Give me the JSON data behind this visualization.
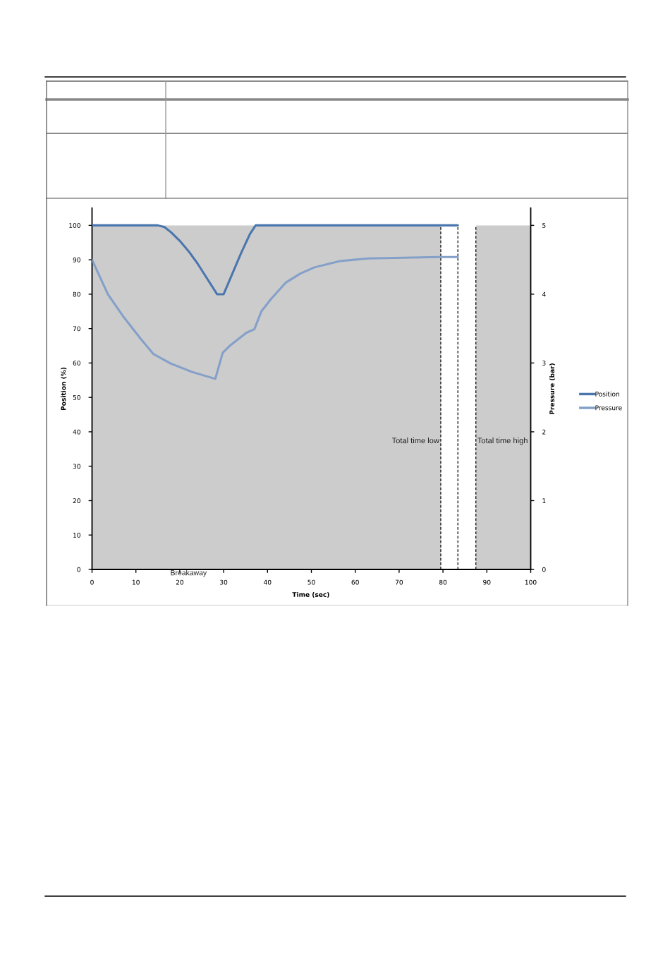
{
  "chart_data": {
    "type": "line",
    "xlabel": "Time (sec)",
    "ylabel": "Position (%)",
    "y2label": "Pressure (bar)",
    "xlim": [
      0,
      100
    ],
    "xticks": [
      0,
      10,
      20,
      30,
      40,
      50,
      60,
      70,
      80,
      90,
      100
    ],
    "ylim": [
      0,
      105
    ],
    "yticks": [
      0,
      10,
      20,
      30,
      40,
      50,
      60,
      70,
      80,
      90,
      100
    ],
    "y2lim": [
      0,
      5.25
    ],
    "y2ticks": [
      0,
      1,
      2,
      3,
      4,
      5
    ],
    "series": [
      {
        "type": "area",
        "color": "#cccccc",
        "x": [
          0,
          79.5
        ],
        "values": [
          100,
          100
        ]
      },
      {
        "type": "area",
        "color": "#cccccc",
        "x": [
          87.5,
          100
        ],
        "values": [
          100,
          100
        ]
      },
      {
        "name": "Position",
        "color": "#4a76ae",
        "x": [
          0,
          15,
          16.5,
          18,
          20,
          22,
          24,
          26,
          28.5,
          30,
          32,
          34,
          36,
          37.3,
          83.4
        ],
        "values": [
          100,
          100,
          99.5,
          98,
          95.5,
          92.5,
          89,
          85,
          80,
          80,
          86,
          92,
          97.5,
          100,
          100
        ]
      },
      {
        "name": "Pressure",
        "color": "#84a0c9",
        "axis": "y2",
        "x": [
          0,
          3.6,
          7.3,
          11.1,
          14,
          18,
          22.8,
          28.1,
          29.8,
          31.4,
          35.2,
          37,
          38.6,
          40.8,
          44.2,
          47.5,
          50.7,
          56.5,
          63,
          71,
          79,
          83.4
        ],
        "values": [
          4.5,
          4.0,
          3.66,
          3.35,
          3.13,
          2.99,
          2.87,
          2.77,
          3.15,
          3.25,
          3.44,
          3.49,
          3.75,
          3.93,
          4.17,
          4.3,
          4.39,
          4.48,
          4.52,
          4.53,
          4.54,
          4.54
        ]
      }
    ],
    "ref_lines": [
      {
        "axis": "x",
        "value": 79.5,
        "label": "Total time low",
        "color": "#000000",
        "line_style": "dashed"
      },
      {
        "axis": "x",
        "value": 83.4,
        "color": "#000000",
        "line_style": "dashed"
      },
      {
        "axis": "x",
        "value": 87.5,
        "label": "Total time high",
        "color": "#000000",
        "line_style": "dashed"
      }
    ],
    "annotations": [
      {
        "text": "Breakaway",
        "x": 22,
        "y": 0
      }
    ],
    "legend": "right",
    "grid": false,
    "marker": "none",
    "line_style": "solid"
  }
}
